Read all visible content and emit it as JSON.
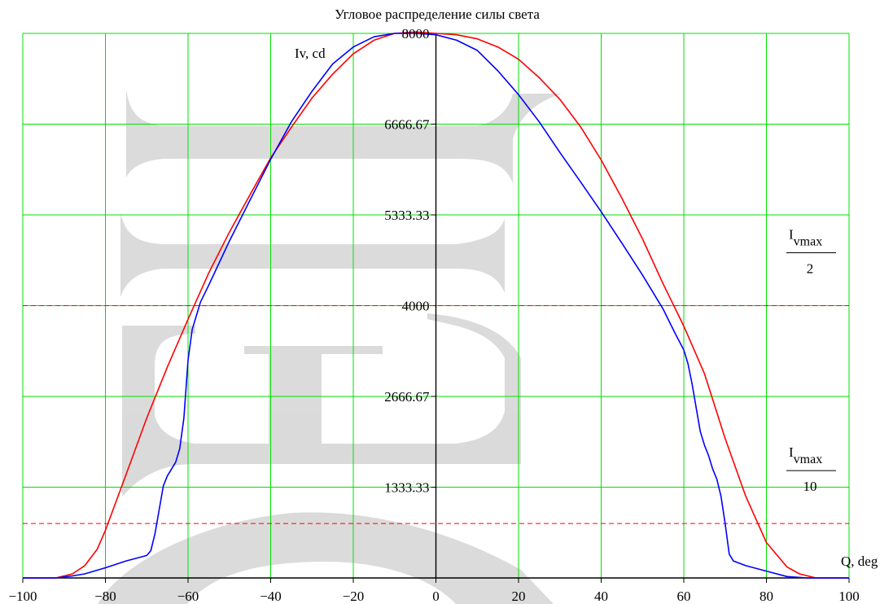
{
  "chart_data": {
    "type": "line",
    "title": "Угловое распределение силы света",
    "xlabel": "Q, deg",
    "ylabel": "Iv, cd",
    "xlim": [
      -100,
      100
    ],
    "ylim": [
      0,
      8000
    ],
    "grid": true,
    "x_ticks": [
      -100,
      -80,
      -60,
      -40,
      -20,
      0,
      20,
      40,
      60,
      80,
      100
    ],
    "x_tick_labels": [
      "−100",
      "−80",
      "−60",
      "−40",
      "−20",
      "0",
      "20",
      "40",
      "60",
      "80",
      "100"
    ],
    "y_ticks": [
      1333.33,
      2666.67,
      4000,
      5333.33,
      6666.67,
      8000
    ],
    "y_tick_labels": [
      "1333.33",
      "2666.67",
      "4000",
      "5333.33",
      "6666.67",
      "8000"
    ],
    "reference_lines": [
      {
        "y": 4000,
        "label_main": "I",
        "label_sub": "vmax",
        "label_den": "2",
        "color": "#ff0000",
        "style": "dashed"
      },
      {
        "y": 800,
        "label_main": "I",
        "label_sub": "vmax",
        "label_den": "10",
        "color": "#ff0000",
        "style": "dashed"
      }
    ],
    "series": [
      {
        "color": "#ff0000",
        "x": [
          -100,
          -92,
          -88,
          -85,
          -82,
          -80,
          -75,
          -70,
          -65,
          -60,
          -55,
          -50,
          -45,
          -40,
          -35,
          -30,
          -25,
          -20,
          -15,
          -10,
          -5,
          0,
          5,
          10,
          15,
          20,
          25,
          30,
          35,
          40,
          45,
          50,
          55,
          60,
          65,
          70,
          75,
          80,
          85,
          88,
          92,
          100
        ],
        "y": [
          0,
          0,
          60,
          180,
          420,
          700,
          1520,
          2350,
          3100,
          3800,
          4480,
          5080,
          5630,
          6170,
          6620,
          7050,
          7400,
          7700,
          7900,
          8000,
          8020,
          8000,
          7980,
          7920,
          7800,
          7620,
          7350,
          7030,
          6630,
          6140,
          5580,
          4980,
          4320,
          3700,
          3000,
          2050,
          1200,
          520,
          160,
          60,
          0,
          0
        ]
      },
      {
        "color": "#0000ff",
        "x": [
          -100,
          -92,
          -88,
          -85,
          -80,
          -75,
          -70,
          -69,
          -68,
          -67,
          -66,
          -65,
          -64,
          -63,
          -62,
          -61,
          -60,
          -59,
          -58,
          -57,
          -55,
          -50,
          -45,
          -40,
          -35,
          -30,
          -25,
          -20,
          -15,
          -10,
          -5,
          0,
          5,
          10,
          15,
          20,
          25,
          30,
          35,
          40,
          45,
          50,
          55,
          58,
          60,
          61,
          62,
          63,
          64,
          65,
          66,
          67,
          68,
          69,
          70,
          71,
          72,
          75,
          80,
          85,
          90,
          100
        ],
        "y": [
          0,
          0,
          30,
          60,
          150,
          250,
          330,
          400,
          650,
          1000,
          1350,
          1500,
          1600,
          1700,
          1900,
          2350,
          3200,
          3650,
          3850,
          4050,
          4300,
          4950,
          5550,
          6150,
          6700,
          7150,
          7550,
          7800,
          7950,
          8000,
          8000,
          7980,
          7900,
          7750,
          7450,
          7100,
          6700,
          6250,
          5820,
          5380,
          4920,
          4450,
          3950,
          3580,
          3350,
          3150,
          2850,
          2500,
          2150,
          1950,
          1800,
          1600,
          1450,
          1200,
          800,
          350,
          250,
          180,
          100,
          20,
          0,
          0
        ]
      }
    ]
  },
  "watermark": {
    "text": "ЕЕВ",
    "color": "#d9d9d9"
  }
}
